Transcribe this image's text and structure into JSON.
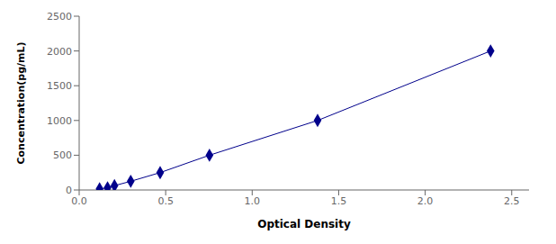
{
  "chart_data": {
    "type": "line",
    "x": [
      0.118,
      0.164,
      0.204,
      0.298,
      0.468,
      0.753,
      1.378,
      2.378
    ],
    "values": [
      15.6,
      31.2,
      62.5,
      125,
      250,
      500,
      1000,
      2000
    ],
    "color": "#00008B",
    "marker": "diamond",
    "xlabel": "Optical Density",
    "ylabel": "Concentration(pg/mL)",
    "xlim": [
      0.0,
      2.6
    ],
    "ylim": [
      0,
      2500
    ],
    "xticks": [
      {
        "value": 0,
        "label": "0.0"
      },
      {
        "value": 0.5,
        "label": "0.5"
      },
      {
        "value": 1,
        "label": "1.0"
      },
      {
        "value": 1.5,
        "label": "1.5"
      },
      {
        "value": 2,
        "label": "2.0"
      },
      {
        "value": 2.5,
        "label": "2.5"
      }
    ],
    "yticks": [
      0,
      500,
      1000,
      1500,
      2000,
      2500
    ],
    "grid": false
  }
}
